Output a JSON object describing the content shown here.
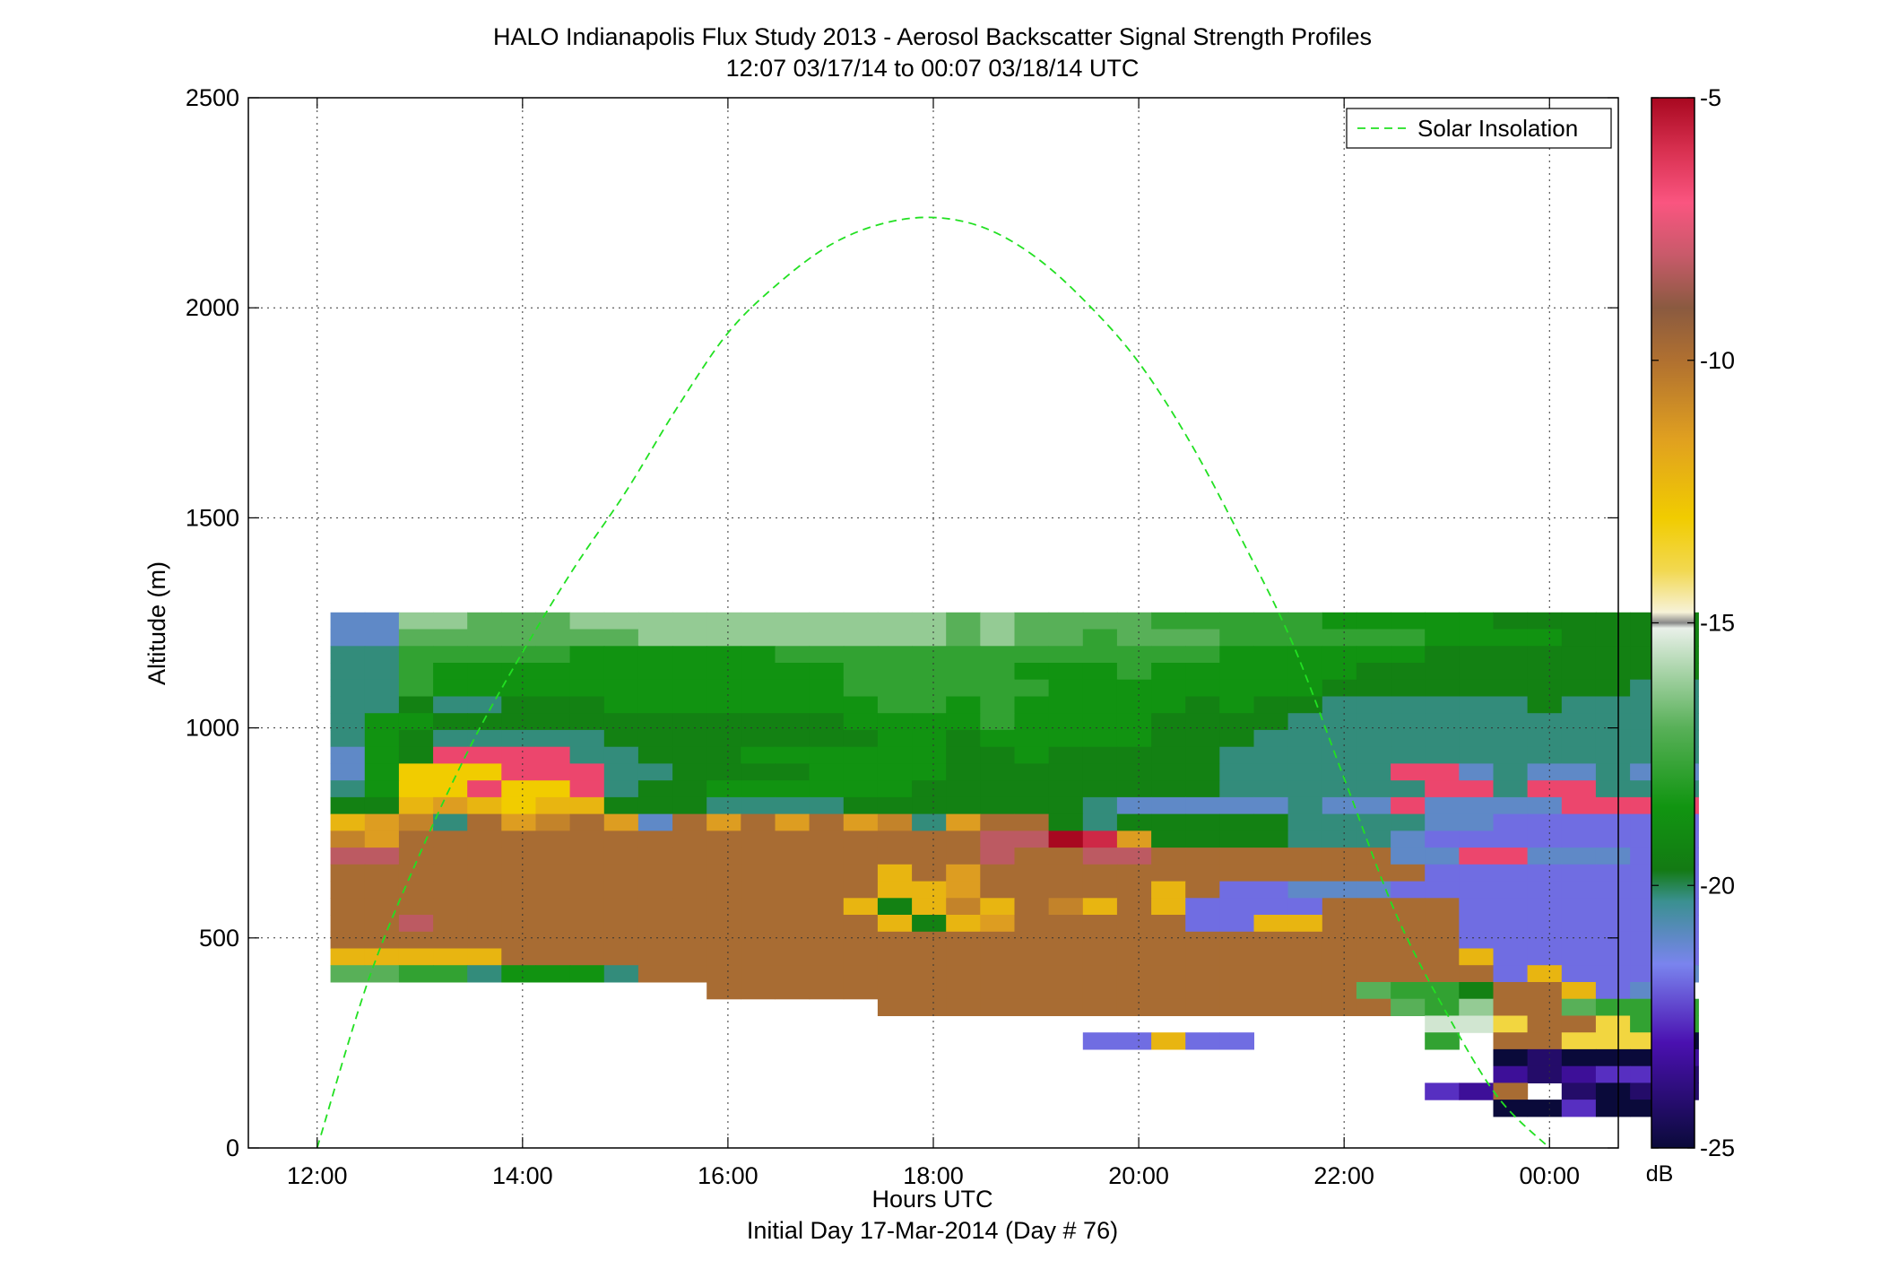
{
  "chart_data": {
    "type": "heatmap",
    "title": "HALO Indianapolis Flux Study 2013 - Aerosol Backscatter Signal Strength Profiles",
    "subtitle": "12:07 03/17/14 to 00:07 03/18/14  UTC",
    "xlabel": "Hours UTC",
    "xlabel2": "Initial Day 17-Mar-2014 (Day # 76)",
    "ylabel": "Altitude (m)",
    "xlim": [
      11.33,
      24.67
    ],
    "ylim": [
      0,
      2500
    ],
    "x_ticks": [
      12,
      14,
      16,
      18,
      20,
      22,
      24
    ],
    "x_tick_labels": [
      "12:00",
      "14:00",
      "16:00",
      "18:00",
      "20:00",
      "22:00",
      "00:00"
    ],
    "y_ticks": [
      0,
      500,
      1000,
      1500,
      2000,
      2500
    ],
    "y_tick_labels": [
      "0",
      "500",
      "1000",
      "1500",
      "2000",
      "2500"
    ],
    "grid": true,
    "colorbar": {
      "label": "dB",
      "range": [
        -25,
        -5
      ],
      "ticks": [
        -5,
        -10,
        -15,
        -20,
        -25
      ],
      "tick_labels": [
        "-5",
        "-10",
        "-15",
        "-20",
        "-25"
      ],
      "stops": [
        {
          "v": -25,
          "c": "#0a0a3a"
        },
        {
          "v": -23,
          "c": "#4a10b0"
        },
        {
          "v": -21.5,
          "c": "#7a84ee"
        },
        {
          "v": -20.3,
          "c": "#3a9090"
        },
        {
          "v": -19.7,
          "c": "#137a13"
        },
        {
          "v": -18.5,
          "c": "#119511"
        },
        {
          "v": -17,
          "c": "#58b058"
        },
        {
          "v": -15.8,
          "c": "#b2d8b2"
        },
        {
          "v": -15.1,
          "c": "#e9f0e9"
        },
        {
          "v": -15,
          "c": "#888888"
        },
        {
          "v": -14.8,
          "c": "#f7f2d8"
        },
        {
          "v": -14,
          "c": "#f2d850"
        },
        {
          "v": -13,
          "c": "#f1cc00"
        },
        {
          "v": -11.5,
          "c": "#e0a020"
        },
        {
          "v": -10,
          "c": "#b07030"
        },
        {
          "v": -9,
          "c": "#8a5a40"
        },
        {
          "v": -8,
          "c": "#c85a6a"
        },
        {
          "v": -7,
          "c": "#fa5580"
        },
        {
          "v": -6,
          "c": "#d83050"
        },
        {
          "v": -5,
          "c": "#a80820"
        }
      ]
    },
    "grid_x_start": 12.13,
    "grid_x_step": 0.333,
    "grid_y_start": 75,
    "grid_y_step": 40,
    "rows": [
      "FFLLKKKLLLLLLLLLLLKLKKKKJJJJJIIIIIHHHHHH",
      "FFKKKKKKKLLLLLLLLLKLKKJKKKJJJJJJIIIIHHHH",
      "GGJJJJJIIIIIIJJJJJJJJJJJJJIIIIIIHHHHHHHH",
      "GGJIIIIIIIIIIIIJJJJJIIIJIIIIIIHHHHHHHHHH",
      "GGJIIIIIIIIIIIIJJJJJJIIIIIIIIHHHHHHHHHGG",
      "GGHGGHHHIIIIIIIIJJIJIIIIIHIHHGGGGGGHGGGG",
      "GIIHHHHHHHHHHHHIIIIJIIIIHHHHGGGGGGGGGGGG",
      "GIHGGGGGHHHHHHHHIIHIIIIIHHHGGGGGGGGGGGGG",
      "FIHXXXXGGHHHIIIIIIHHIHHHHHGGGGGGGGGGGGGG",
      "FIPPPXXXGGHHHHIIIIHHHHHHHHGGGGGXXFGFFGFF",
      "GIPPXPPXGHHIIIIIIHHHHHHHHHGGGGGGXXGXXGGG",
      "HHQRQPQQHHHGGGGHHHHHHHGFFFFFGFFXFFFFXXXX",
      "QRSGTRSTRFTRTRTRSGRTTHGHHHHHGGGGFFEEEEEE",
      "SRTTTTTTTTTTTTTTTTTVVZYRHHHHGGGFEEEEEEEE",
      "VVTTTTTTTTTTTTTTTTTVTTVVTTTTTTTFFXXFFFEE",
      "TTTTTTTTTTTTTTTTQTRTTTTTTTTTTTTTEEEEEEEE",
      "TTTTTTTTTTTTTTTTQQRTTTTTQTEEFFFEEEEEEEEE",
      "TTTTTTTTTTTTTTTQHQSQTSQTQEEEETTTTEEEEEEE",
      "TTVTTTTTTTTTTTTTQHQRTTTTTEEQQTTTTEEEEEEE",
      "TTTTTTTTTTTTTTTTTTTTTTTTTTTTTTTTTEEEEEEE",
      "QQQQQTTTTTTTTTTTTTTTTTTTTTTTTTTTTQEEEEEE",
      "KKJJGIIIGTTTTTTTTTTTTTTTTTTTTTTTTTEQEEEF",
      "...........TTTTTTTTTTTTTTTTTTTKJJHTTQEF.",
      "................TTTTTTTTTTTTTTTKJLTTKJJJ",
      "................................MMOTTOJJ",
      "......................EEQEE.....J.TTOOOA",
      "..................................ABAAAC",
      "..................................CBCDDB",
      "................................DCT.BABB",
      "..................................AADAA."
    ],
    "legend": [
      "Solar Insolation"
    ],
    "legend_position": "top-right",
    "series": [
      {
        "name": "Solar Insolation",
        "style": "dashed",
        "color": "#22e022",
        "x": [
          12.0,
          12.5,
          13.0,
          13.5,
          14.0,
          14.5,
          15.0,
          15.5,
          16.0,
          16.5,
          17.0,
          17.5,
          18.0,
          18.5,
          19.0,
          19.5,
          20.0,
          20.5,
          21.0,
          21.5,
          22.0,
          22.5,
          23.0,
          23.5,
          24.0
        ],
        "y": [
          0,
          400,
          700,
          960,
          1180,
          1380,
          1560,
          1760,
          1940,
          2060,
          2150,
          2200,
          2215,
          2190,
          2120,
          2010,
          1870,
          1680,
          1450,
          1200,
          880,
          560,
          320,
          120,
          0
        ]
      }
    ]
  }
}
